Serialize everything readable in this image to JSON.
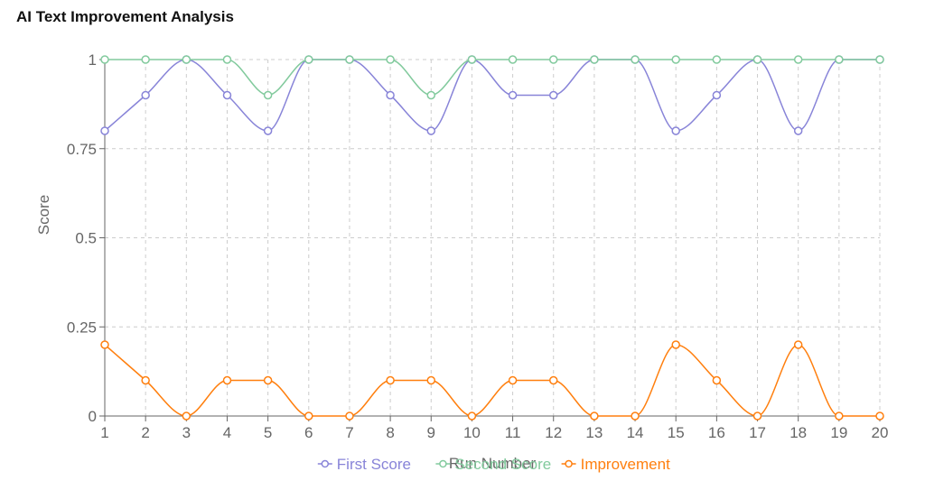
{
  "title": "AI Text Improvement Analysis",
  "chart_data": {
    "type": "line",
    "x": [
      1,
      2,
      3,
      4,
      5,
      6,
      7,
      8,
      9,
      10,
      11,
      12,
      13,
      14,
      15,
      16,
      17,
      18,
      19,
      20
    ],
    "xlabel": "Run Number",
    "ylabel": "Score",
    "ylim": [
      0,
      1
    ],
    "yticks": [
      "0",
      "0.25",
      "0.5",
      "0.75",
      "1"
    ],
    "grid": true,
    "legend": "bottom",
    "series": [
      {
        "name": "First Score",
        "color": "#8884d8",
        "values": [
          0.8,
          0.9,
          1,
          0.9,
          0.8,
          1,
          1,
          0.9,
          0.8,
          1,
          0.9,
          0.9,
          1,
          1,
          0.8,
          0.9,
          1,
          0.8,
          1,
          1
        ]
      },
      {
        "name": "Second Score",
        "color": "#82ca9d",
        "values": [
          1,
          1,
          1,
          1,
          0.9,
          1,
          1,
          1,
          0.9,
          1,
          1,
          1,
          1,
          1,
          1,
          1,
          1,
          1,
          1,
          1
        ]
      },
      {
        "name": "Improvement",
        "color": "#ff7f0e",
        "values": [
          0.2,
          0.1,
          0,
          0.1,
          0.1,
          0,
          0,
          0.1,
          0.1,
          0,
          0.1,
          0.1,
          0,
          0,
          0.2,
          0.1,
          0,
          0.2,
          0,
          0
        ]
      }
    ]
  }
}
